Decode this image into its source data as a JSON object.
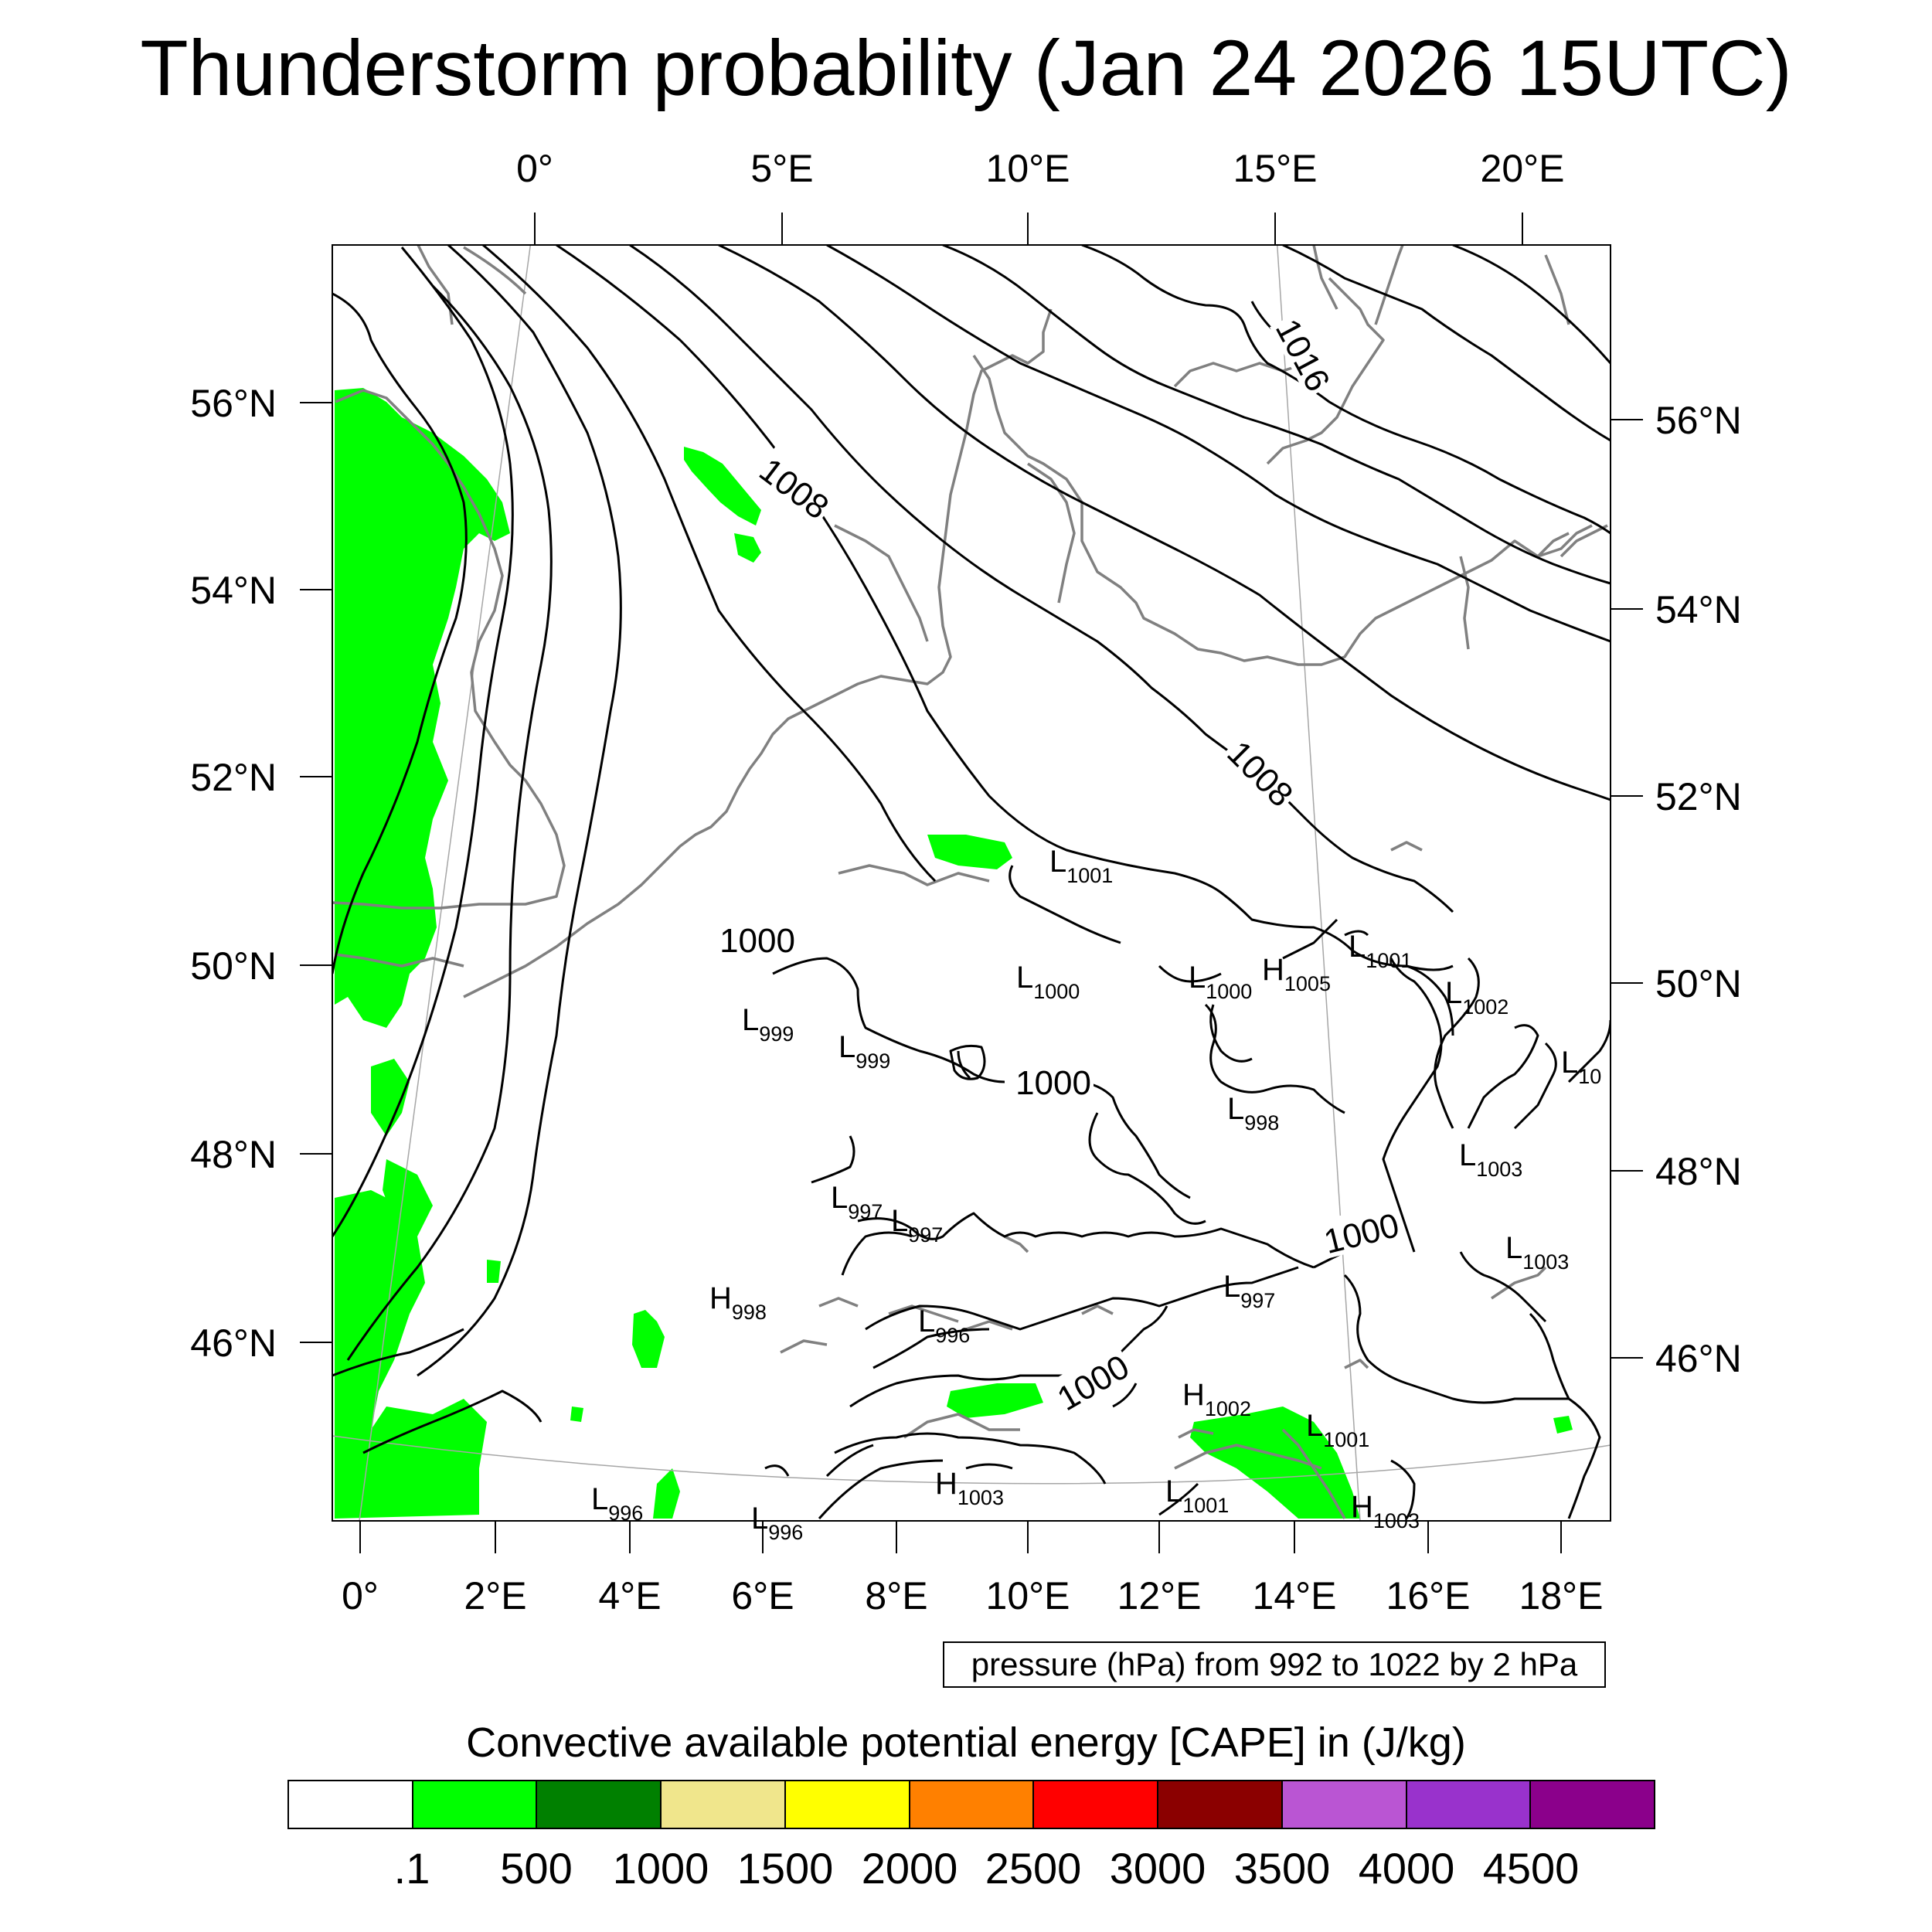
{
  "title": "Thunderstorm probability (Jan 24 2026 15UTC)",
  "map": {
    "top_lon_labels": [
      "0°",
      "5°E",
      "10°E",
      "15°E",
      "20°E"
    ],
    "bottom_lon_labels": [
      "0°",
      "2°E",
      "4°E",
      "6°E",
      "8°E",
      "10°E",
      "12°E",
      "14°E",
      "16°E",
      "18°E"
    ],
    "left_lat_labels": [
      "56°N",
      "54°N",
      "52°N",
      "50°N",
      "48°N",
      "46°N"
    ],
    "right_lat_labels": [
      "56°N",
      "54°N",
      "52°N",
      "50°N",
      "48°N",
      "46°N"
    ],
    "contour_labels": [
      "1016",
      "1008",
      "1008",
      "1000",
      "1000",
      "1000",
      "1000"
    ],
    "pressure_systems": [
      {
        "type": "L",
        "value": "1001"
      },
      {
        "type": "L",
        "value": "1001"
      },
      {
        "type": "L",
        "value": "1000"
      },
      {
        "type": "L",
        "value": "1000"
      },
      {
        "type": "H",
        "value": "1005"
      },
      {
        "type": "L",
        "value": "1002"
      },
      {
        "type": "L",
        "value": "999"
      },
      {
        "type": "L",
        "value": "999"
      },
      {
        "type": "L",
        "value": "10"
      },
      {
        "type": "L",
        "value": "998"
      },
      {
        "type": "L",
        "value": "1003"
      },
      {
        "type": "L",
        "value": "997"
      },
      {
        "type": "L",
        "value": "997"
      },
      {
        "type": "L",
        "value": "1003"
      },
      {
        "type": "L",
        "value": "997"
      },
      {
        "type": "H",
        "value": "998"
      },
      {
        "type": "L",
        "value": "996"
      },
      {
        "type": "H",
        "value": "1002"
      },
      {
        "type": "L",
        "value": "1001"
      },
      {
        "type": "L",
        "value": "996"
      },
      {
        "type": "L",
        "value": "996"
      },
      {
        "type": "H",
        "value": "1003"
      },
      {
        "type": "L",
        "value": "1001"
      },
      {
        "type": "H",
        "value": "1003"
      }
    ],
    "cape_color": "#00ff00",
    "isobar_color": "#000000",
    "coastline_color": "#808080"
  },
  "contour_info": "pressure (hPa) from 992 to 1022 by 2 hPa",
  "legend": {
    "title": "Convective available potential energy [CAPE] in (J/kg)",
    "colors": [
      "#ffffff",
      "#00ff00",
      "#008000",
      "#f0e68c",
      "#ffff00",
      "#ff8000",
      "#ff0000",
      "#8b0000",
      "#ba55d3",
      "#9932cc",
      "#8b008b"
    ],
    "labels": [
      ".1",
      "500",
      "1000",
      "1500",
      "2000",
      "2500",
      "3000",
      "3500",
      "4000",
      "4500"
    ]
  }
}
